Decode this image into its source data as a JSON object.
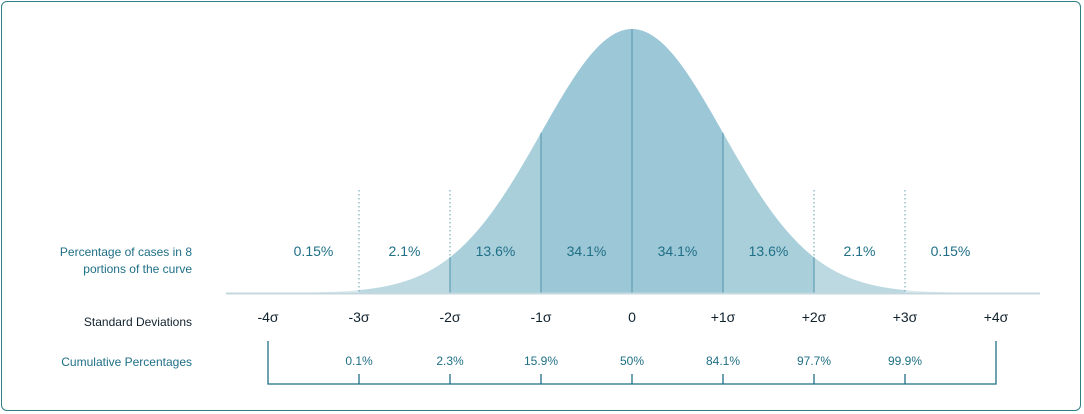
{
  "colors": {
    "border": "#2f7f86",
    "tail": "#dcebf0",
    "outer_band": "#bcd9e2",
    "middle_band": "#a9cfdb",
    "inner_band": "#9cc7d6",
    "divider": "#5f9fb3",
    "axis": "#c4d8de",
    "teal_text": "#1f6f86",
    "dark_text": "#10222e"
  },
  "row_labels": {
    "percentages_line1": "Percentage of cases in 8",
    "percentages_line2": "portions of the curve",
    "standard_deviations": "Standard Deviations",
    "cumulative": "Cumulative Percentages"
  },
  "chart_data": {
    "type": "area",
    "distribution": "normal",
    "x_range": [
      -4,
      4
    ],
    "segments": [
      {
        "from": -4,
        "to": -3,
        "percent": "0.15%"
      },
      {
        "from": -3,
        "to": -2,
        "percent": "2.1%"
      },
      {
        "from": -2,
        "to": -1,
        "percent": "13.6%"
      },
      {
        "from": -1,
        "to": 0,
        "percent": "34.1%"
      },
      {
        "from": 0,
        "to": 1,
        "percent": "34.1%"
      },
      {
        "from": 1,
        "to": 2,
        "percent": "13.6%"
      },
      {
        "from": 2,
        "to": 3,
        "percent": "2.1%"
      },
      {
        "from": 3,
        "to": 4,
        "percent": "0.15%"
      }
    ],
    "sd_ticks": [
      {
        "value": -4,
        "label": "-4σ"
      },
      {
        "value": -3,
        "label": "-3σ"
      },
      {
        "value": -2,
        "label": "-2σ"
      },
      {
        "value": -1,
        "label": "-1σ"
      },
      {
        "value": 0,
        "label": "0"
      },
      {
        "value": 1,
        "label": "+1σ"
      },
      {
        "value": 2,
        "label": "+2σ"
      },
      {
        "value": 3,
        "label": "+3σ"
      },
      {
        "value": 4,
        "label": "+4σ"
      }
    ],
    "cumulative": [
      {
        "value": -3,
        "label": "0.1%"
      },
      {
        "value": -2,
        "label": "2.3%"
      },
      {
        "value": -1,
        "label": "15.9%"
      },
      {
        "value": 0,
        "label": "50%"
      },
      {
        "value": 1,
        "label": "84.1%"
      },
      {
        "value": 2,
        "label": "97.7%"
      },
      {
        "value": 3,
        "label": "99.9%"
      }
    ]
  }
}
